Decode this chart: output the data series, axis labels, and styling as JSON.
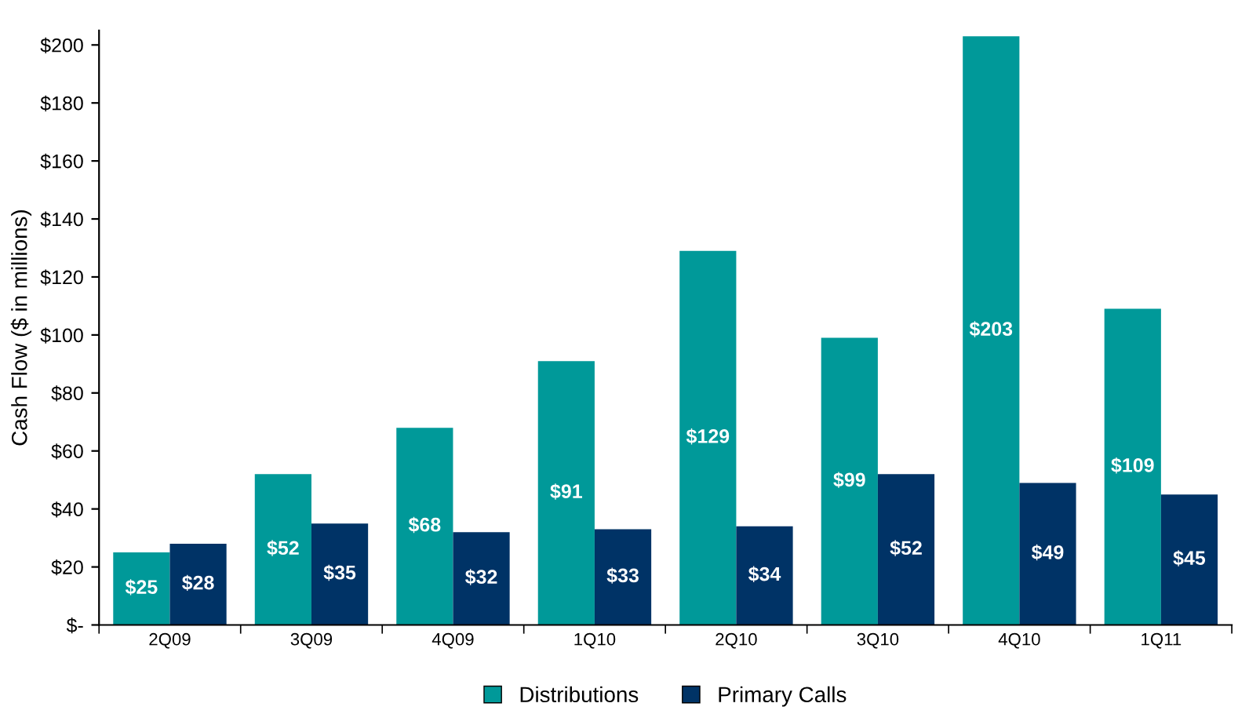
{
  "chart_data": {
    "type": "bar",
    "ylabel": "Cash Flow ($ in millions)",
    "categories": [
      "2Q09",
      "3Q09",
      "4Q09",
      "1Q10",
      "2Q10",
      "3Q10",
      "4Q10",
      "1Q11"
    ],
    "series": [
      {
        "name": "Distributions",
        "color": "#009999",
        "values": [
          25,
          52,
          68,
          91,
          129,
          99,
          203,
          109
        ],
        "value_labels": [
          "$25",
          "$52",
          "$68",
          "$91",
          "$129",
          "$99",
          "$203",
          "$109"
        ]
      },
      {
        "name": "Primary Calls",
        "color": "#003366",
        "values": [
          28,
          35,
          32,
          33,
          34,
          52,
          49,
          45
        ],
        "value_labels": [
          "$28",
          "$35",
          "$32",
          "$33",
          "$34",
          "$52",
          "$49",
          "$45"
        ]
      }
    ],
    "ylim": [
      0,
      205
    ],
    "yticks": [
      {
        "value": 0,
        "label": "$-"
      },
      {
        "value": 20,
        "label": "$20"
      },
      {
        "value": 40,
        "label": "$40"
      },
      {
        "value": 60,
        "label": "$60"
      },
      {
        "value": 80,
        "label": "$80"
      },
      {
        "value": 100,
        "label": "$100"
      },
      {
        "value": 120,
        "label": "$120"
      },
      {
        "value": 140,
        "label": "$140"
      },
      {
        "value": 160,
        "label": "$160"
      },
      {
        "value": 180,
        "label": "$180"
      },
      {
        "value": 200,
        "label": "$200"
      }
    ],
    "grid": false,
    "legend": "bottom"
  }
}
